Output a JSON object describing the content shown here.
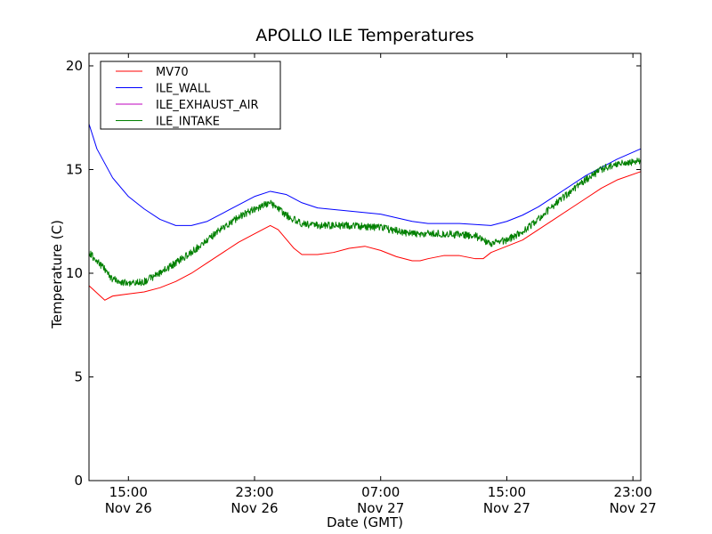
{
  "chart_data": {
    "type": "line",
    "title": "APOLLO ILE Temperatures",
    "xlabel": "Date (GMT)",
    "ylabel": "Temperature (C)",
    "xlim": [
      "2023-11-26 12:30",
      "2023-11-27 23:30"
    ],
    "ylim": [
      0,
      20.6
    ],
    "grid": false,
    "legend_position": "top-left",
    "x_ticks": [
      {
        "x": "2023-11-26 15:00",
        "line1": "15:00",
        "line2": "Nov 26"
      },
      {
        "x": "2023-11-26 23:00",
        "line1": "23:00",
        "line2": "Nov 26"
      },
      {
        "x": "2023-11-27 07:00",
        "line1": "07:00",
        "line2": "Nov 27"
      },
      {
        "x": "2023-11-27 15:00",
        "line1": "15:00",
        "line2": "Nov 27"
      },
      {
        "x": "2023-11-27 23:00",
        "line1": "23:00",
        "line2": "Nov 27"
      }
    ],
    "y_ticks": [
      {
        "v": 0,
        "label": "0"
      },
      {
        "v": 5,
        "label": "5"
      },
      {
        "v": 10,
        "label": "10"
      },
      {
        "v": 15,
        "label": "15"
      },
      {
        "v": 20,
        "label": "20"
      }
    ],
    "series": [
      {
        "name": "MV70",
        "color": "#ff0000",
        "noise": 0,
        "points": [
          [
            "2023-11-26 12:30",
            9.4
          ],
          [
            "2023-11-26 13:30",
            8.7
          ],
          [
            "2023-11-26 14:00",
            8.9
          ],
          [
            "2023-11-26 15:00",
            9.0
          ],
          [
            "2023-11-26 16:00",
            9.1
          ],
          [
            "2023-11-26 17:00",
            9.3
          ],
          [
            "2023-11-26 18:00",
            9.6
          ],
          [
            "2023-11-26 19:00",
            10.0
          ],
          [
            "2023-11-26 20:00",
            10.5
          ],
          [
            "2023-11-26 21:00",
            11.0
          ],
          [
            "2023-11-26 22:00",
            11.5
          ],
          [
            "2023-11-26 23:00",
            11.9
          ],
          [
            "2023-11-27 00:00",
            12.3
          ],
          [
            "2023-11-27 00:30",
            12.1
          ],
          [
            "2023-11-27 01:30",
            11.2
          ],
          [
            "2023-11-27 02:00",
            10.9
          ],
          [
            "2023-11-27 03:00",
            10.9
          ],
          [
            "2023-11-27 04:00",
            11.0
          ],
          [
            "2023-11-27 05:00",
            11.2
          ],
          [
            "2023-11-27 06:00",
            11.3
          ],
          [
            "2023-11-27 07:00",
            11.1
          ],
          [
            "2023-11-27 08:00",
            10.8
          ],
          [
            "2023-11-27 09:00",
            10.6
          ],
          [
            "2023-11-27 09:30",
            10.6
          ],
          [
            "2023-11-27 10:00",
            10.7
          ],
          [
            "2023-11-27 11:00",
            10.85
          ],
          [
            "2023-11-27 12:00",
            10.85
          ],
          [
            "2023-11-27 13:00",
            10.7
          ],
          [
            "2023-11-27 13:30",
            10.7
          ],
          [
            "2023-11-27 14:00",
            11.0
          ],
          [
            "2023-11-27 15:00",
            11.3
          ],
          [
            "2023-11-27 16:00",
            11.6
          ],
          [
            "2023-11-27 17:00",
            12.1
          ],
          [
            "2023-11-27 18:00",
            12.6
          ],
          [
            "2023-11-27 19:00",
            13.1
          ],
          [
            "2023-11-27 20:00",
            13.6
          ],
          [
            "2023-11-27 21:00",
            14.1
          ],
          [
            "2023-11-27 22:00",
            14.5
          ],
          [
            "2023-11-27 23:30",
            14.9
          ]
        ]
      },
      {
        "name": "ILE_WALL",
        "color": "#0000ff",
        "noise": 0,
        "points": [
          [
            "2023-11-26 12:30",
            17.2
          ],
          [
            "2023-11-26 13:00",
            16.0
          ],
          [
            "2023-11-26 14:00",
            14.6
          ],
          [
            "2023-11-26 15:00",
            13.7
          ],
          [
            "2023-11-26 16:00",
            13.1
          ],
          [
            "2023-11-26 17:00",
            12.6
          ],
          [
            "2023-11-26 18:00",
            12.3
          ],
          [
            "2023-11-26 19:00",
            12.3
          ],
          [
            "2023-11-26 20:00",
            12.5
          ],
          [
            "2023-11-26 21:00",
            12.9
          ],
          [
            "2023-11-26 22:00",
            13.3
          ],
          [
            "2023-11-26 23:00",
            13.7
          ],
          [
            "2023-11-27 00:00",
            13.95
          ],
          [
            "2023-11-27 01:00",
            13.8
          ],
          [
            "2023-11-27 02:00",
            13.4
          ],
          [
            "2023-11-27 03:00",
            13.15
          ],
          [
            "2023-11-27 05:00",
            13.0
          ],
          [
            "2023-11-27 07:00",
            12.85
          ],
          [
            "2023-11-27 09:00",
            12.5
          ],
          [
            "2023-11-27 10:00",
            12.4
          ],
          [
            "2023-11-27 12:00",
            12.4
          ],
          [
            "2023-11-27 14:00",
            12.3
          ],
          [
            "2023-11-27 15:00",
            12.5
          ],
          [
            "2023-11-27 16:00",
            12.8
          ],
          [
            "2023-11-27 17:00",
            13.2
          ],
          [
            "2023-11-27 18:00",
            13.7
          ],
          [
            "2023-11-27 19:00",
            14.2
          ],
          [
            "2023-11-27 20:00",
            14.7
          ],
          [
            "2023-11-27 21:00",
            15.1
          ],
          [
            "2023-11-27 22:00",
            15.5
          ],
          [
            "2023-11-27 23:30",
            16.0
          ]
        ]
      },
      {
        "name": "ILE_EXHAUST_AIR",
        "color": "#bf00bf",
        "noise": 0,
        "points": []
      },
      {
        "name": "ILE_INTAKE",
        "color": "#008000",
        "noise": 0.35,
        "points": [
          [
            "2023-11-26 12:30",
            11.0
          ],
          [
            "2023-11-26 13:00",
            10.6
          ],
          [
            "2023-11-26 13:30",
            10.2
          ],
          [
            "2023-11-26 14:00",
            9.7
          ],
          [
            "2023-11-26 15:00",
            9.5
          ],
          [
            "2023-11-26 16:00",
            9.6
          ],
          [
            "2023-11-26 17:00",
            10.0
          ],
          [
            "2023-11-26 18:00",
            10.5
          ],
          [
            "2023-11-26 19:00",
            11.0
          ],
          [
            "2023-11-26 20:00",
            11.6
          ],
          [
            "2023-11-26 21:00",
            12.2
          ],
          [
            "2023-11-26 22:00",
            12.7
          ],
          [
            "2023-11-26 23:00",
            13.1
          ],
          [
            "2023-11-27 00:00",
            13.4
          ],
          [
            "2023-11-27 01:00",
            12.8
          ],
          [
            "2023-11-27 02:00",
            12.4
          ],
          [
            "2023-11-27 03:00",
            12.3
          ],
          [
            "2023-11-27 05:00",
            12.3
          ],
          [
            "2023-11-27 07:00",
            12.2
          ],
          [
            "2023-11-27 09:00",
            11.9
          ],
          [
            "2023-11-27 11:00",
            11.9
          ],
          [
            "2023-11-27 13:00",
            11.8
          ],
          [
            "2023-11-27 14:00",
            11.4
          ],
          [
            "2023-11-27 15:00",
            11.6
          ],
          [
            "2023-11-27 16:00",
            12.0
          ],
          [
            "2023-11-27 17:00",
            12.6
          ],
          [
            "2023-11-27 18:00",
            13.3
          ],
          [
            "2023-11-27 19:00",
            13.9
          ],
          [
            "2023-11-27 20:00",
            14.5
          ],
          [
            "2023-11-27 21:00",
            15.0
          ],
          [
            "2023-11-27 22:00",
            15.3
          ],
          [
            "2023-11-27 23:30",
            15.4
          ]
        ]
      }
    ]
  }
}
